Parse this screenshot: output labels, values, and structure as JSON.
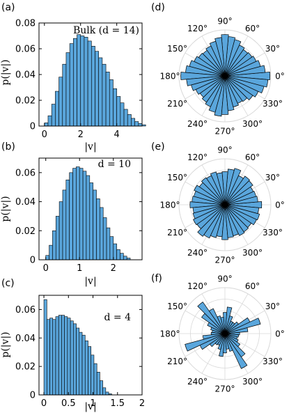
{
  "figure": {
    "bar_color": "#5aa6dc",
    "edge_color": "#000000"
  },
  "chart_data": [
    {
      "panel": "(a)",
      "type": "bar",
      "annotation": "Bulk  (d = 14)",
      "xlabel": "|v|",
      "ylabel": "p(|v|)",
      "xlim": [
        -0.3,
        5.4
      ],
      "ylim": [
        0,
        0.08
      ],
      "xticks": [
        0,
        2,
        4
      ],
      "yticks": [
        0,
        0.02,
        0.04,
        0.06,
        0.08
      ],
      "bin_width": 0.2,
      "bin_start": 0,
      "values": [
        0.0025,
        0.008,
        0.017,
        0.027,
        0.038,
        0.048,
        0.057,
        0.064,
        0.068,
        0.071,
        0.07,
        0.069,
        0.066,
        0.062,
        0.058,
        0.053,
        0.048,
        0.042,
        0.036,
        0.029,
        0.023,
        0.018,
        0.013,
        0.009,
        0.006,
        0.0035,
        0.002,
        0.001
      ]
    },
    {
      "panel": "(b)",
      "type": "bar",
      "annotation": "d = 10",
      "xlabel": "|v|",
      "ylabel": "p(|v|)",
      "xlim": [
        -0.2,
        2.85
      ],
      "ylim": [
        0,
        0.07
      ],
      "xticks": [
        0,
        1,
        2
      ],
      "yticks": [
        0,
        0.02,
        0.04,
        0.06
      ],
      "bin_width": 0.1,
      "bin_start": 0,
      "values": [
        0.003,
        0.01,
        0.02,
        0.03,
        0.04,
        0.048,
        0.055,
        0.06,
        0.063,
        0.064,
        0.063,
        0.061,
        0.058,
        0.053,
        0.048,
        0.042,
        0.036,
        0.029,
        0.022,
        0.016,
        0.011,
        0.007,
        0.0045,
        0.0025,
        0.0012
      ]
    },
    {
      "panel": "(c)",
      "type": "bar",
      "annotation": "d = 4",
      "xlabel": "|v|",
      "ylabel": "p(|v|)",
      "xlim": [
        -0.1,
        2.0
      ],
      "ylim": [
        0,
        0.07
      ],
      "xticks": [
        0,
        0.5,
        1,
        1.5,
        2
      ],
      "yticks": [
        0,
        0.02,
        0.04,
        0.06
      ],
      "bin_width": 0.06,
      "bin_start": 0,
      "values": [
        0.067,
        0.053,
        0.054,
        0.053,
        0.055,
        0.056,
        0.056,
        0.055,
        0.054,
        0.052,
        0.05,
        0.047,
        0.044,
        0.042,
        0.038,
        0.034,
        0.028,
        0.022,
        0.016,
        0.01,
        0.005,
        0.002,
        0.0008
      ]
    },
    {
      "panel": "(d)",
      "type": "polar-bar",
      "angle_labels": [
        "0°",
        "30°",
        "60°",
        "90°",
        "120°",
        "150°",
        "180°",
        "210°",
        "240°",
        "270°",
        "300°",
        "330°"
      ],
      "bin_width_deg": 10,
      "radii": [
        0.98,
        0.88,
        0.8,
        0.75,
        0.72,
        0.7,
        0.74,
        0.82,
        0.86,
        0.9,
        0.84,
        0.78,
        0.72,
        0.68,
        0.7,
        0.74,
        0.8,
        0.86,
        0.96,
        0.84,
        0.76,
        0.7,
        0.66,
        0.7,
        0.74,
        0.82,
        0.88,
        0.84,
        0.76,
        0.7,
        0.66,
        0.68,
        0.74,
        0.8,
        0.88,
        0.94
      ]
    },
    {
      "panel": "(e)",
      "type": "polar-bar",
      "angle_labels": [
        "0°",
        "30°",
        "60°",
        "90°",
        "120°",
        "150°",
        "180°",
        "210°",
        "240°",
        "270°",
        "300°",
        "330°"
      ],
      "bin_width_deg": 10,
      "radii": [
        0.8,
        0.72,
        0.7,
        0.68,
        0.74,
        0.76,
        0.7,
        0.82,
        0.78,
        0.72,
        0.7,
        0.74,
        0.7,
        0.72,
        0.68,
        0.74,
        0.7,
        0.72,
        0.76,
        0.7,
        0.72,
        0.76,
        0.74,
        0.84,
        0.8,
        0.74,
        0.7,
        0.76,
        0.72,
        0.7,
        0.74,
        0.72,
        0.7,
        0.76,
        0.78,
        0.74
      ]
    },
    {
      "panel": "(f)",
      "type": "polar-bar",
      "angle_labels": [
        "0°",
        "30°",
        "60°",
        "90°",
        "120°",
        "150°",
        "180°",
        "210°",
        "240°",
        "270°",
        "300°",
        "330°"
      ],
      "bin_width_deg": 10,
      "radii": [
        0.32,
        0.5,
        0.8,
        0.6,
        0.36,
        0.3,
        0.3,
        0.4,
        0.58,
        0.46,
        0.36,
        0.4,
        0.6,
        0.84,
        0.62,
        0.42,
        0.32,
        0.28,
        0.3,
        0.48,
        0.9,
        0.6,
        0.4,
        0.3,
        0.28,
        0.36,
        0.5,
        0.42,
        0.34,
        0.4,
        0.84,
        0.62,
        0.4,
        0.32,
        0.28,
        0.3
      ]
    }
  ]
}
